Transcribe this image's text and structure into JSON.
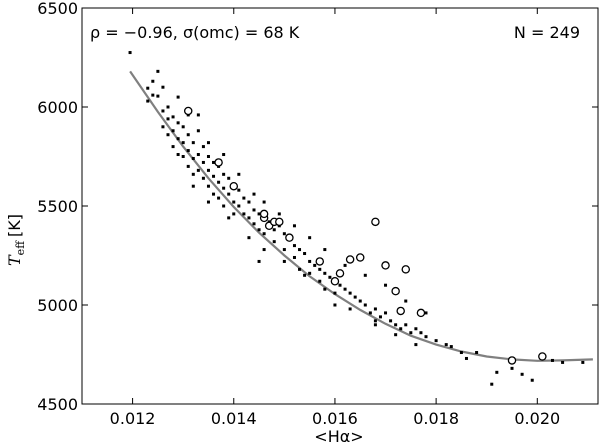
{
  "chart_data": {
    "type": "scatter",
    "title": "",
    "xlabel": "<Hα>",
    "ylabel_main": "T",
    "ylabel_sub": "eff",
    "ylabel_unit": "[K]",
    "xlim": [
      0.011,
      0.0212
    ],
    "ylim": [
      4500,
      6500
    ],
    "xticks": [
      "0.012",
      "0.014",
      "0.016",
      "0.018",
      "0.020"
    ],
    "xtick_values": [
      0.012,
      0.014,
      0.016,
      0.018,
      0.02
    ],
    "yticks": [
      "4500",
      "5000",
      "5500",
      "6000",
      "6500"
    ],
    "ytick_values": [
      4500,
      5000,
      5500,
      6000,
      6500
    ],
    "grid": false,
    "annotations": {
      "stats": "ρ = −0.96, σ(omc) = 68 K",
      "count": "N = 249"
    },
    "fit_curve": {
      "color": "#808080",
      "x": [
        0.01195,
        0.0125,
        0.013,
        0.0135,
        0.014,
        0.0145,
        0.015,
        0.0155,
        0.016,
        0.0165,
        0.017,
        0.0175,
        0.018,
        0.0185,
        0.019,
        0.0195,
        0.02,
        0.0205,
        0.0211
      ],
      "y": [
        6180,
        5975,
        5800,
        5640,
        5495,
        5365,
        5250,
        5145,
        5055,
        4975,
        4905,
        4845,
        4800,
        4765,
        4740,
        4725,
        4718,
        4720,
        4725
      ]
    },
    "series": [
      {
        "marker": "square",
        "color": "#000000",
        "points": [
          [
            0.01195,
            6275
          ],
          [
            0.0123,
            6095
          ],
          [
            0.0124,
            6060
          ],
          [
            0.0124,
            6130
          ],
          [
            0.0123,
            6030
          ],
          [
            0.0125,
            6180
          ],
          [
            0.0125,
            6055
          ],
          [
            0.0126,
            5980
          ],
          [
            0.0126,
            5900
          ],
          [
            0.0127,
            5940
          ],
          [
            0.0127,
            6000
          ],
          [
            0.0127,
            5860
          ],
          [
            0.0128,
            5950
          ],
          [
            0.0128,
            5880
          ],
          [
            0.0128,
            5800
          ],
          [
            0.0129,
            5920
          ],
          [
            0.0129,
            5840
          ],
          [
            0.0129,
            5760
          ],
          [
            0.013,
            5900
          ],
          [
            0.013,
            5820
          ],
          [
            0.013,
            5750
          ],
          [
            0.0131,
            5860
          ],
          [
            0.0131,
            5780
          ],
          [
            0.0131,
            5700
          ],
          [
            0.0132,
            5820
          ],
          [
            0.0132,
            5740
          ],
          [
            0.0132,
            5660
          ],
          [
            0.0133,
            5880
          ],
          [
            0.0133,
            5760
          ],
          [
            0.0133,
            5680
          ],
          [
            0.0134,
            5800
          ],
          [
            0.0134,
            5720
          ],
          [
            0.0134,
            5640
          ],
          [
            0.0135,
            5750
          ],
          [
            0.0135,
            5680
          ],
          [
            0.0135,
            5600
          ],
          [
            0.0136,
            5720
          ],
          [
            0.0136,
            5650
          ],
          [
            0.0136,
            5560
          ],
          [
            0.0137,
            5700
          ],
          [
            0.0137,
            5620
          ],
          [
            0.0137,
            5540
          ],
          [
            0.0138,
            5660
          ],
          [
            0.0138,
            5590
          ],
          [
            0.0138,
            5500
          ],
          [
            0.0139,
            5640
          ],
          [
            0.0139,
            5560
          ],
          [
            0.014,
            5600
          ],
          [
            0.014,
            5520
          ],
          [
            0.014,
            5460
          ],
          [
            0.0141,
            5580
          ],
          [
            0.0141,
            5500
          ],
          [
            0.0142,
            5540
          ],
          [
            0.0142,
            5460
          ],
          [
            0.0143,
            5520
          ],
          [
            0.0143,
            5440
          ],
          [
            0.0144,
            5480
          ],
          [
            0.0144,
            5410
          ],
          [
            0.0145,
            5460
          ],
          [
            0.0145,
            5380
          ],
          [
            0.0146,
            5440
          ],
          [
            0.0146,
            5360
          ],
          [
            0.0147,
            5420
          ],
          [
            0.0148,
            5380
          ],
          [
            0.0148,
            5320
          ],
          [
            0.0149,
            5400
          ],
          [
            0.015,
            5360
          ],
          [
            0.015,
            5280
          ],
          [
            0.0151,
            5340
          ],
          [
            0.0152,
            5300
          ],
          [
            0.0152,
            5240
          ],
          [
            0.0153,
            5280
          ],
          [
            0.0154,
            5260
          ],
          [
            0.0155,
            5220
          ],
          [
            0.0155,
            5160
          ],
          [
            0.0156,
            5200
          ],
          [
            0.0157,
            5180
          ],
          [
            0.0157,
            5120
          ],
          [
            0.0158,
            5160
          ],
          [
            0.0159,
            5140
          ],
          [
            0.016,
            5120
          ],
          [
            0.016,
            5060
          ],
          [
            0.0161,
            5100
          ],
          [
            0.0162,
            5080
          ],
          [
            0.0163,
            5060
          ],
          [
            0.0164,
            5040
          ],
          [
            0.0165,
            5020
          ],
          [
            0.0166,
            5000
          ],
          [
            0.0167,
            4960
          ],
          [
            0.0168,
            4980
          ],
          [
            0.0169,
            4940
          ],
          [
            0.017,
            4960
          ],
          [
            0.0171,
            4920
          ],
          [
            0.0172,
            4900
          ],
          [
            0.0173,
            4880
          ],
          [
            0.0174,
            4900
          ],
          [
            0.0175,
            4860
          ],
          [
            0.0176,
            4880
          ],
          [
            0.0177,
            4860
          ],
          [
            0.0178,
            4840
          ],
          [
            0.018,
            4820
          ],
          [
            0.0182,
            4800
          ],
          [
            0.0183,
            4790
          ],
          [
            0.0185,
            4760
          ],
          [
            0.0186,
            4730
          ],
          [
            0.0188,
            4760
          ],
          [
            0.0191,
            4600
          ],
          [
            0.0192,
            4660
          ],
          [
            0.0195,
            4680
          ],
          [
            0.0197,
            4650
          ],
          [
            0.0199,
            4620
          ],
          [
            0.0203,
            4720
          ],
          [
            0.0205,
            4710
          ],
          [
            0.0209,
            4710
          ],
          [
            0.0126,
            6100
          ],
          [
            0.0129,
            6050
          ],
          [
            0.0131,
            5960
          ],
          [
            0.0133,
            5960
          ],
          [
            0.0135,
            5820
          ],
          [
            0.0138,
            5760
          ],
          [
            0.0141,
            5660
          ],
          [
            0.0144,
            5560
          ],
          [
            0.0146,
            5520
          ],
          [
            0.0149,
            5460
          ],
          [
            0.0152,
            5400
          ],
          [
            0.0155,
            5340
          ],
          [
            0.0158,
            5280
          ],
          [
            0.0162,
            5200
          ],
          [
            0.0166,
            5150
          ],
          [
            0.017,
            5100
          ],
          [
            0.0174,
            5020
          ],
          [
            0.0178,
            4960
          ],
          [
            0.0132,
            5600
          ],
          [
            0.0135,
            5520
          ],
          [
            0.0139,
            5440
          ],
          [
            0.0143,
            5340
          ],
          [
            0.0146,
            5280
          ],
          [
            0.015,
            5220
          ],
          [
            0.0154,
            5150
          ],
          [
            0.0158,
            5080
          ],
          [
            0.0163,
            4980
          ],
          [
            0.0168,
            4920
          ],
          [
            0.0172,
            4850
          ],
          [
            0.0176,
            4800
          ],
          [
            0.0145,
            5220
          ],
          [
            0.0153,
            5180
          ],
          [
            0.016,
            5000
          ],
          [
            0.0168,
            4900
          ]
        ]
      },
      {
        "marker": "circle",
        "color": "#000000",
        "points": [
          [
            0.0131,
            5980
          ],
          [
            0.0137,
            5720
          ],
          [
            0.014,
            5600
          ],
          [
            0.0146,
            5440
          ],
          [
            0.0146,
            5460
          ],
          [
            0.0147,
            5400
          ],
          [
            0.0148,
            5420
          ],
          [
            0.0149,
            5420
          ],
          [
            0.0151,
            5340
          ],
          [
            0.0157,
            5220
          ],
          [
            0.016,
            5120
          ],
          [
            0.0161,
            5160
          ],
          [
            0.0163,
            5230
          ],
          [
            0.0165,
            5240
          ],
          [
            0.0168,
            5420
          ],
          [
            0.017,
            5200
          ],
          [
            0.0172,
            5070
          ],
          [
            0.0173,
            4970
          ],
          [
            0.0174,
            5180
          ],
          [
            0.0177,
            4960
          ],
          [
            0.0195,
            4720
          ],
          [
            0.0201,
            4740
          ]
        ]
      }
    ]
  }
}
